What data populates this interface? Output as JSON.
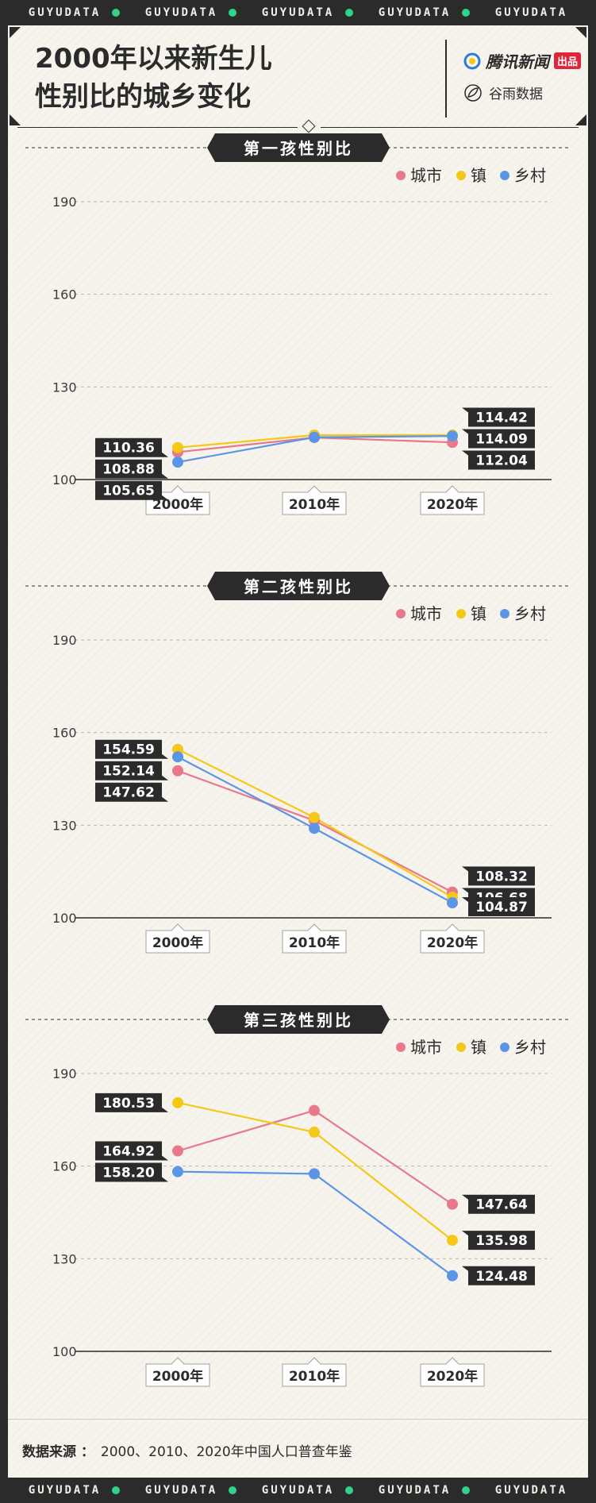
{
  "header": {
    "band_text": "GUYUDATA",
    "title_line1": "2000年以来新生儿",
    "title_line2": "性别比的城乡变化",
    "brand_primary": "腾讯新闻",
    "brand_badge": "出品",
    "brand_secondary": "谷雨数据"
  },
  "footer": {
    "source_label": "数据来源 ：",
    "source_text": "2000、2010、2020年中国人口普查年鉴"
  },
  "colors": {
    "city": "#e8788a",
    "town": "#f5c818",
    "rural": "#5b95e6",
    "ink": "#2b2b2b"
  },
  "chart_data": [
    {
      "type": "line",
      "title": "第一孩性别比",
      "categories": [
        "2000年",
        "2010年",
        "2020年"
      ],
      "ylim": [
        100,
        190
      ],
      "yticks": [
        100,
        130,
        160,
        190
      ],
      "grid": true,
      "legend": "top-right",
      "series": [
        {
          "name": "城市",
          "key": "city",
          "values": [
            108.88,
            113.6,
            112.04
          ]
        },
        {
          "name": "镇",
          "key": "town",
          "values": [
            110.36,
            114.4,
            114.42
          ]
        },
        {
          "name": "乡村",
          "key": "rural",
          "values": [
            105.65,
            113.7,
            114.09
          ]
        }
      ],
      "labels_start": [
        "110.36",
        "108.88",
        "105.65"
      ],
      "labels_end": [
        "114.42",
        "114.09",
        "112.04"
      ]
    },
    {
      "type": "line",
      "title": "第二孩性别比",
      "categories": [
        "2000年",
        "2010年",
        "2020年"
      ],
      "ylim": [
        100,
        190
      ],
      "yticks": [
        100,
        130,
        160,
        190
      ],
      "grid": true,
      "legend": "top-right",
      "series": [
        {
          "name": "城市",
          "key": "city",
          "values": [
            147.62,
            131.5,
            108.32
          ]
        },
        {
          "name": "镇",
          "key": "town",
          "values": [
            154.59,
            132.5,
            106.68
          ]
        },
        {
          "name": "乡村",
          "key": "rural",
          "values": [
            152.14,
            129.0,
            104.87
          ]
        }
      ],
      "labels_start": [
        "154.59",
        "152.14",
        "147.62"
      ],
      "labels_end": [
        "108.32",
        "106.68",
        "104.87"
      ]
    },
    {
      "type": "line",
      "title": "第三孩性别比",
      "categories": [
        "2000年",
        "2010年",
        "2020年"
      ],
      "ylim": [
        100,
        190
      ],
      "yticks": [
        100,
        130,
        160,
        190
      ],
      "grid": true,
      "legend": "top-right",
      "series": [
        {
          "name": "城市",
          "key": "city",
          "values": [
            164.92,
            178.0,
            147.64
          ]
        },
        {
          "name": "镇",
          "key": "town",
          "values": [
            180.53,
            171.0,
            135.98
          ]
        },
        {
          "name": "乡村",
          "key": "rural",
          "values": [
            158.2,
            157.5,
            124.48
          ]
        }
      ],
      "labels_start": [
        "180.53",
        "164.92",
        "158.20"
      ],
      "labels_end": [
        "147.64",
        "135.98",
        "124.48"
      ]
    }
  ]
}
